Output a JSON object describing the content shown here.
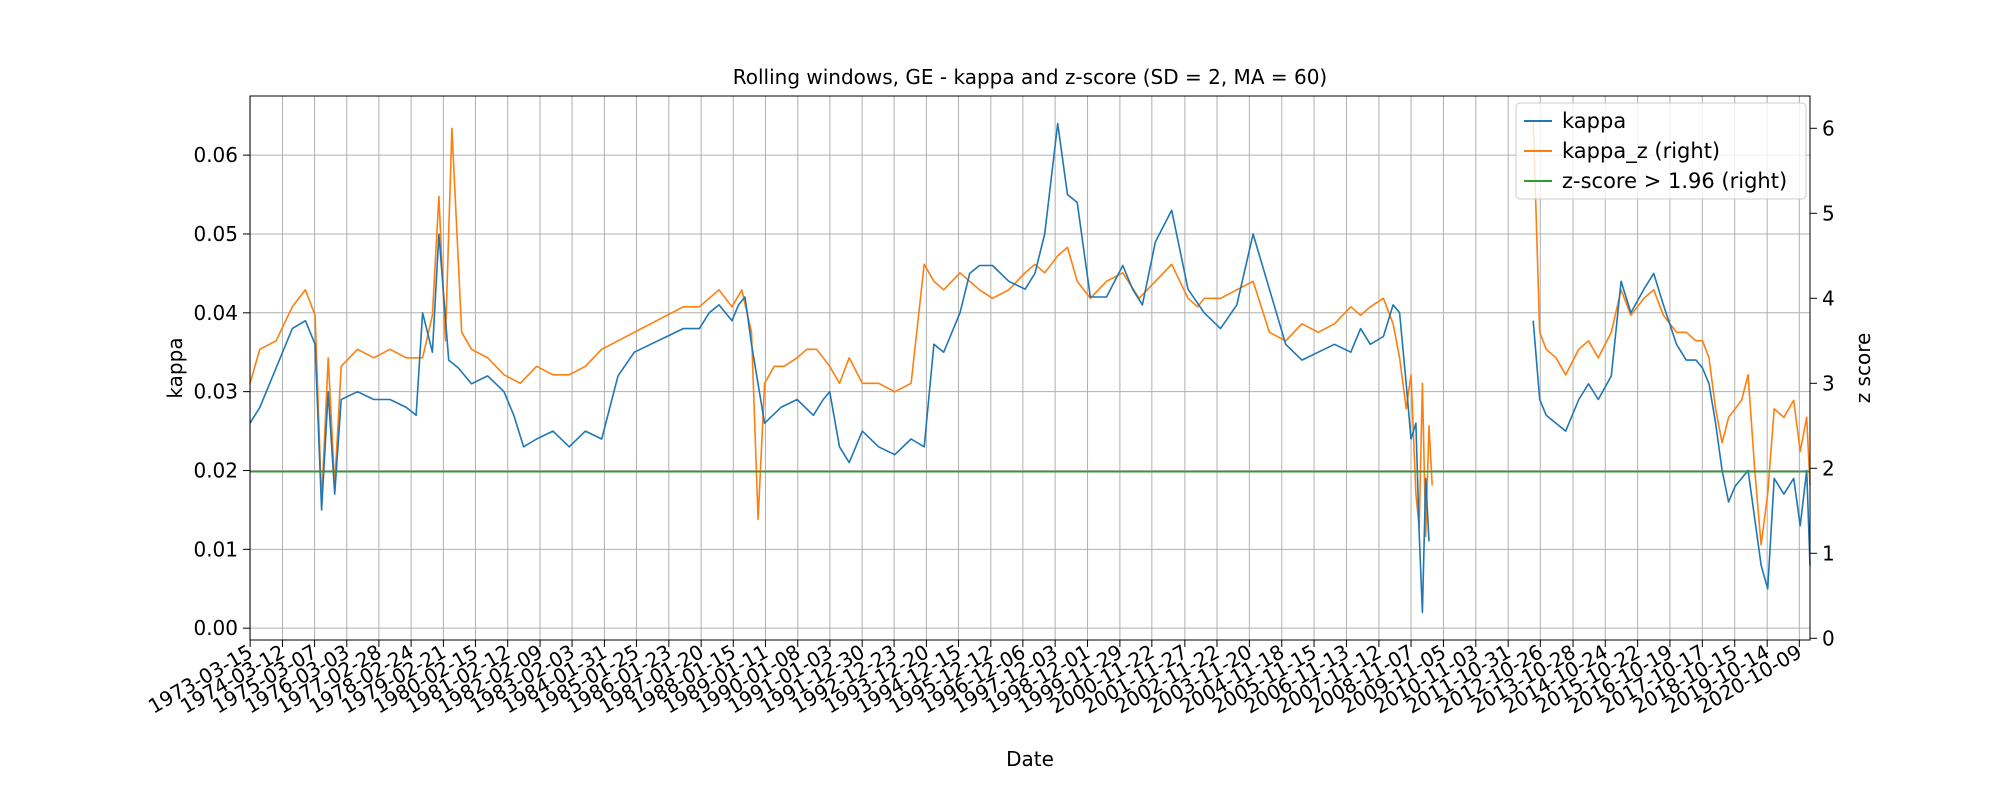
{
  "chart_data": {
    "type": "line",
    "title": "Rolling windows, GE - kappa and z-score (SD = 2, MA = 60)",
    "xlabel": "Date",
    "ylabel": "kappa",
    "ylabel_right": "z score",
    "ylim": [
      -0.0015,
      0.0675
    ],
    "ylim_right": [
      -0.02,
      6.38
    ],
    "yticks": [
      "0.00",
      "0.01",
      "0.02",
      "0.03",
      "0.04",
      "0.05",
      "0.06"
    ],
    "yticks_right": [
      "0",
      "1",
      "2",
      "3",
      "4",
      "5",
      "6"
    ],
    "grid": true,
    "legend_position": "top-right",
    "x_tick_labels": [
      "1973-03-15",
      "1974-03-12",
      "1975-03-07",
      "1976-03-03",
      "1977-02-28",
      "1978-02-24",
      "1979-02-21",
      "1980-02-15",
      "1981-02-12",
      "1982-02-09",
      "1983-02-03",
      "1984-01-31",
      "1985-01-25",
      "1986-01-23",
      "1987-01-20",
      "1988-01-15",
      "1989-01-11",
      "1990-01-08",
      "1991-01-03",
      "1991-12-30",
      "1992-12-23",
      "1993-12-20",
      "1994-12-15",
      "1995-12-12",
      "1996-12-06",
      "1997-12-03",
      "1998-12-01",
      "1999-11-29",
      "2000-11-22",
      "2001-11-27",
      "2002-11-22",
      "2003-11-20",
      "2004-11-18",
      "2005-11-15",
      "2006-11-13",
      "2007-11-12",
      "2008-11-07",
      "2009-11-05",
      "2010-11-03",
      "2011-10-31",
      "2012-10-26",
      "2013-10-28",
      "2014-10-24",
      "2015-10-22",
      "2016-10-19",
      "2017-10-17",
      "2018-10-15",
      "2019-10-14",
      "2020-10-09"
    ],
    "x_range": [
      1973.2,
      2021.1
    ],
    "series": [
      {
        "name": "kappa",
        "axis": "left",
        "color": "#1f77b4",
        "x": [
          1973.2,
          1973.5,
          1974.0,
          1974.5,
          1974.9,
          1975.2,
          1975.4,
          1975.6,
          1975.8,
          1976.0,
          1976.5,
          1977.0,
          1977.5,
          1978.0,
          1978.3,
          1978.5,
          1978.8,
          1979.0,
          1979.3,
          1979.6,
          1980.0,
          1980.5,
          1981.0,
          1981.3,
          1981.6,
          1982.0,
          1982.5,
          1983.0,
          1983.5,
          1984.0,
          1984.5,
          1985.0,
          1985.5,
          1986.0,
          1986.5,
          1987.0,
          1987.3,
          1987.6,
          1988.0,
          1988.2,
          1988.4,
          1988.6,
          1989.0,
          1989.5,
          1990.0,
          1990.5,
          1990.8,
          1991.0,
          1991.3,
          1991.6,
          1992.0,
          1992.5,
          1993.0,
          1993.5,
          1993.9,
          1994.2,
          1994.5,
          1995.0,
          1995.3,
          1995.6,
          1996.0,
          1996.5,
          1997.0,
          1997.3,
          1997.6,
          1998.0,
          1998.3,
          1998.6,
          1999.0,
          1999.5,
          2000.0,
          2000.3,
          2000.6,
          2001.0,
          2001.5,
          2002.0,
          2002.5,
          2003.0,
          2003.5,
          2004.0,
          2004.5,
          2005.0,
          2005.5,
          2006.0,
          2006.5,
          2007.0,
          2007.3,
          2007.6,
          2008.0,
          2008.3,
          2008.5,
          2008.7,
          2008.85,
          2009.0,
          2009.1,
          2009.2,
          2009.3,
          2009.4
        ],
        "y": [
          0.026,
          0.028,
          0.033,
          0.038,
          0.039,
          0.036,
          0.015,
          0.03,
          0.017,
          0.029,
          0.03,
          0.029,
          0.029,
          0.028,
          0.027,
          0.04,
          0.035,
          0.05,
          0.034,
          0.033,
          0.031,
          0.032,
          0.03,
          0.027,
          0.023,
          0.024,
          0.025,
          0.023,
          0.025,
          0.024,
          0.032,
          0.035,
          0.036,
          0.037,
          0.038,
          0.038,
          0.04,
          0.041,
          0.039,
          0.041,
          0.042,
          0.036,
          0.026,
          0.028,
          0.029,
          0.027,
          0.029,
          0.03,
          0.023,
          0.021,
          0.025,
          0.023,
          0.022,
          0.024,
          0.023,
          0.036,
          0.035,
          0.04,
          0.045,
          0.046,
          0.046,
          0.044,
          0.043,
          0.045,
          0.05,
          0.064,
          0.055,
          0.054,
          0.042,
          0.042,
          0.046,
          0.043,
          0.041,
          0.049,
          0.053,
          0.043,
          0.04,
          0.038,
          0.041,
          0.05,
          0.043,
          0.036,
          0.034,
          0.035,
          0.036,
          0.035,
          0.038,
          0.036,
          0.037,
          0.041,
          0.04,
          0.031,
          0.024,
          0.026,
          0.012,
          0.002,
          0.019,
          0.011
        ]
      },
      {
        "name": "kappa",
        "axis": "left",
        "color": "#1f77b4",
        "x": [
          2012.6,
          2012.8,
          2013.0,
          2013.3,
          2013.6,
          2014.0,
          2014.3,
          2014.6,
          2015.0,
          2015.3,
          2015.6,
          2016.0,
          2016.3,
          2016.6,
          2017.0,
          2017.3,
          2017.6,
          2017.8,
          2018.0,
          2018.2,
          2018.4,
          2018.6,
          2018.8,
          2019.0,
          2019.2,
          2019.4,
          2019.6,
          2019.8,
          2020.0,
          2020.3,
          2020.6,
          2020.8,
          2021.0,
          2021.1
        ],
        "y": [
          0.039,
          0.029,
          0.027,
          0.026,
          0.025,
          0.029,
          0.031,
          0.029,
          0.032,
          0.044,
          0.04,
          0.043,
          0.045,
          0.041,
          0.036,
          0.034,
          0.034,
          0.033,
          0.031,
          0.026,
          0.02,
          0.016,
          0.018,
          0.019,
          0.02,
          0.014,
          0.008,
          0.005,
          0.019,
          0.017,
          0.019,
          0.013,
          0.02,
          0.008
        ]
      },
      {
        "name": "kappa_z (right)",
        "axis": "right",
        "color": "#ff7f0e",
        "x": [
          1973.2,
          1973.5,
          1974.0,
          1974.5,
          1974.9,
          1975.2,
          1975.4,
          1975.6,
          1975.8,
          1976.0,
          1976.5,
          1977.0,
          1977.5,
          1978.0,
          1978.3,
          1978.5,
          1978.8,
          1979.0,
          1979.2,
          1979.4,
          1979.7,
          1980.0,
          1980.5,
          1981.0,
          1981.5,
          1982.0,
          1982.5,
          1983.0,
          1983.5,
          1984.0,
          1984.5,
          1985.0,
          1985.5,
          1986.0,
          1986.5,
          1987.0,
          1987.3,
          1987.6,
          1988.0,
          1988.3,
          1988.6,
          1988.8,
          1989.0,
          1989.3,
          1989.6,
          1990.0,
          1990.3,
          1990.6,
          1991.0,
          1991.3,
          1991.6,
          1992.0,
          1992.5,
          1993.0,
          1993.5,
          1993.9,
          1994.2,
          1994.5,
          1995.0,
          1995.3,
          1995.6,
          1996.0,
          1996.5,
          1997.0,
          1997.3,
          1997.6,
          1998.0,
          1998.3,
          1998.6,
          1999.0,
          1999.5,
          2000.0,
          2000.5,
          2001.0,
          2001.5,
          2002.0,
          2002.3,
          2002.5,
          2003.0,
          2003.5,
          2004.0,
          2004.5,
          2005.0,
          2005.5,
          2006.0,
          2006.5,
          2007.0,
          2007.3,
          2007.6,
          2008.0,
          2008.3,
          2008.5,
          2008.7,
          2008.85,
          2009.0,
          2009.1,
          2009.2,
          2009.3,
          2009.4,
          2009.5
        ],
        "y": [
          3.0,
          3.4,
          3.5,
          3.9,
          4.1,
          3.8,
          1.6,
          3.3,
          1.8,
          3.2,
          3.4,
          3.3,
          3.4,
          3.3,
          3.3,
          3.3,
          3.8,
          5.2,
          3.5,
          6.0,
          3.6,
          3.4,
          3.3,
          3.1,
          3.0,
          3.2,
          3.1,
          3.1,
          3.2,
          3.4,
          3.5,
          3.6,
          3.7,
          3.8,
          3.9,
          3.9,
          4.0,
          4.1,
          3.9,
          4.1,
          3.6,
          1.4,
          3.0,
          3.2,
          3.2,
          3.3,
          3.4,
          3.4,
          3.2,
          3.0,
          3.3,
          3.0,
          3.0,
          2.9,
          3.0,
          4.4,
          4.2,
          4.1,
          4.3,
          4.2,
          4.1,
          4.0,
          4.1,
          4.3,
          4.4,
          4.3,
          4.5,
          4.6,
          4.2,
          4.0,
          4.2,
          4.3,
          4.0,
          4.2,
          4.4,
          4.0,
          3.9,
          4.0,
          4.0,
          4.1,
          4.2,
          3.6,
          3.5,
          3.7,
          3.6,
          3.7,
          3.9,
          3.8,
          3.9,
          4.0,
          3.7,
          3.3,
          2.7,
          3.1,
          1.7,
          1.3,
          3.0,
          1.2,
          2.5,
          1.8
        ]
      },
      {
        "name": "kappa_z (right)",
        "axis": "right",
        "color": "#ff7f0e",
        "x": [
          2012.6,
          2012.8,
          2013.0,
          2013.3,
          2013.6,
          2014.0,
          2014.3,
          2014.6,
          2015.0,
          2015.3,
          2015.6,
          2016.0,
          2016.3,
          2016.6,
          2017.0,
          2017.3,
          2017.6,
          2017.8,
          2018.0,
          2018.2,
          2018.4,
          2018.6,
          2018.8,
          2019.0,
          2019.2,
          2019.4,
          2019.6,
          2019.8,
          2020.0,
          2020.3,
          2020.6,
          2020.8,
          2021.0,
          2021.1
        ],
        "y": [
          6.1,
          3.6,
          3.4,
          3.3,
          3.1,
          3.4,
          3.5,
          3.3,
          3.6,
          4.1,
          3.8,
          4.0,
          4.1,
          3.8,
          3.6,
          3.6,
          3.5,
          3.5,
          3.3,
          2.7,
          2.3,
          2.6,
          2.7,
          2.8,
          3.1,
          2.0,
          1.1,
          1.7,
          2.7,
          2.6,
          2.8,
          2.2,
          2.6,
          1.8
        ]
      },
      {
        "name": "z-score > 1.96 (right)",
        "axis": "right",
        "color": "#2ca02c",
        "x": [
          1973.2,
          2021.1
        ],
        "y": [
          1.96,
          1.96
        ]
      }
    ],
    "legend": [
      {
        "label": "kappa",
        "color": "#1f77b4"
      },
      {
        "label": "kappa_z (right)",
        "color": "#ff7f0e"
      },
      {
        "label": "z-score > 1.96 (right)",
        "color": "#2ca02c"
      }
    ]
  }
}
